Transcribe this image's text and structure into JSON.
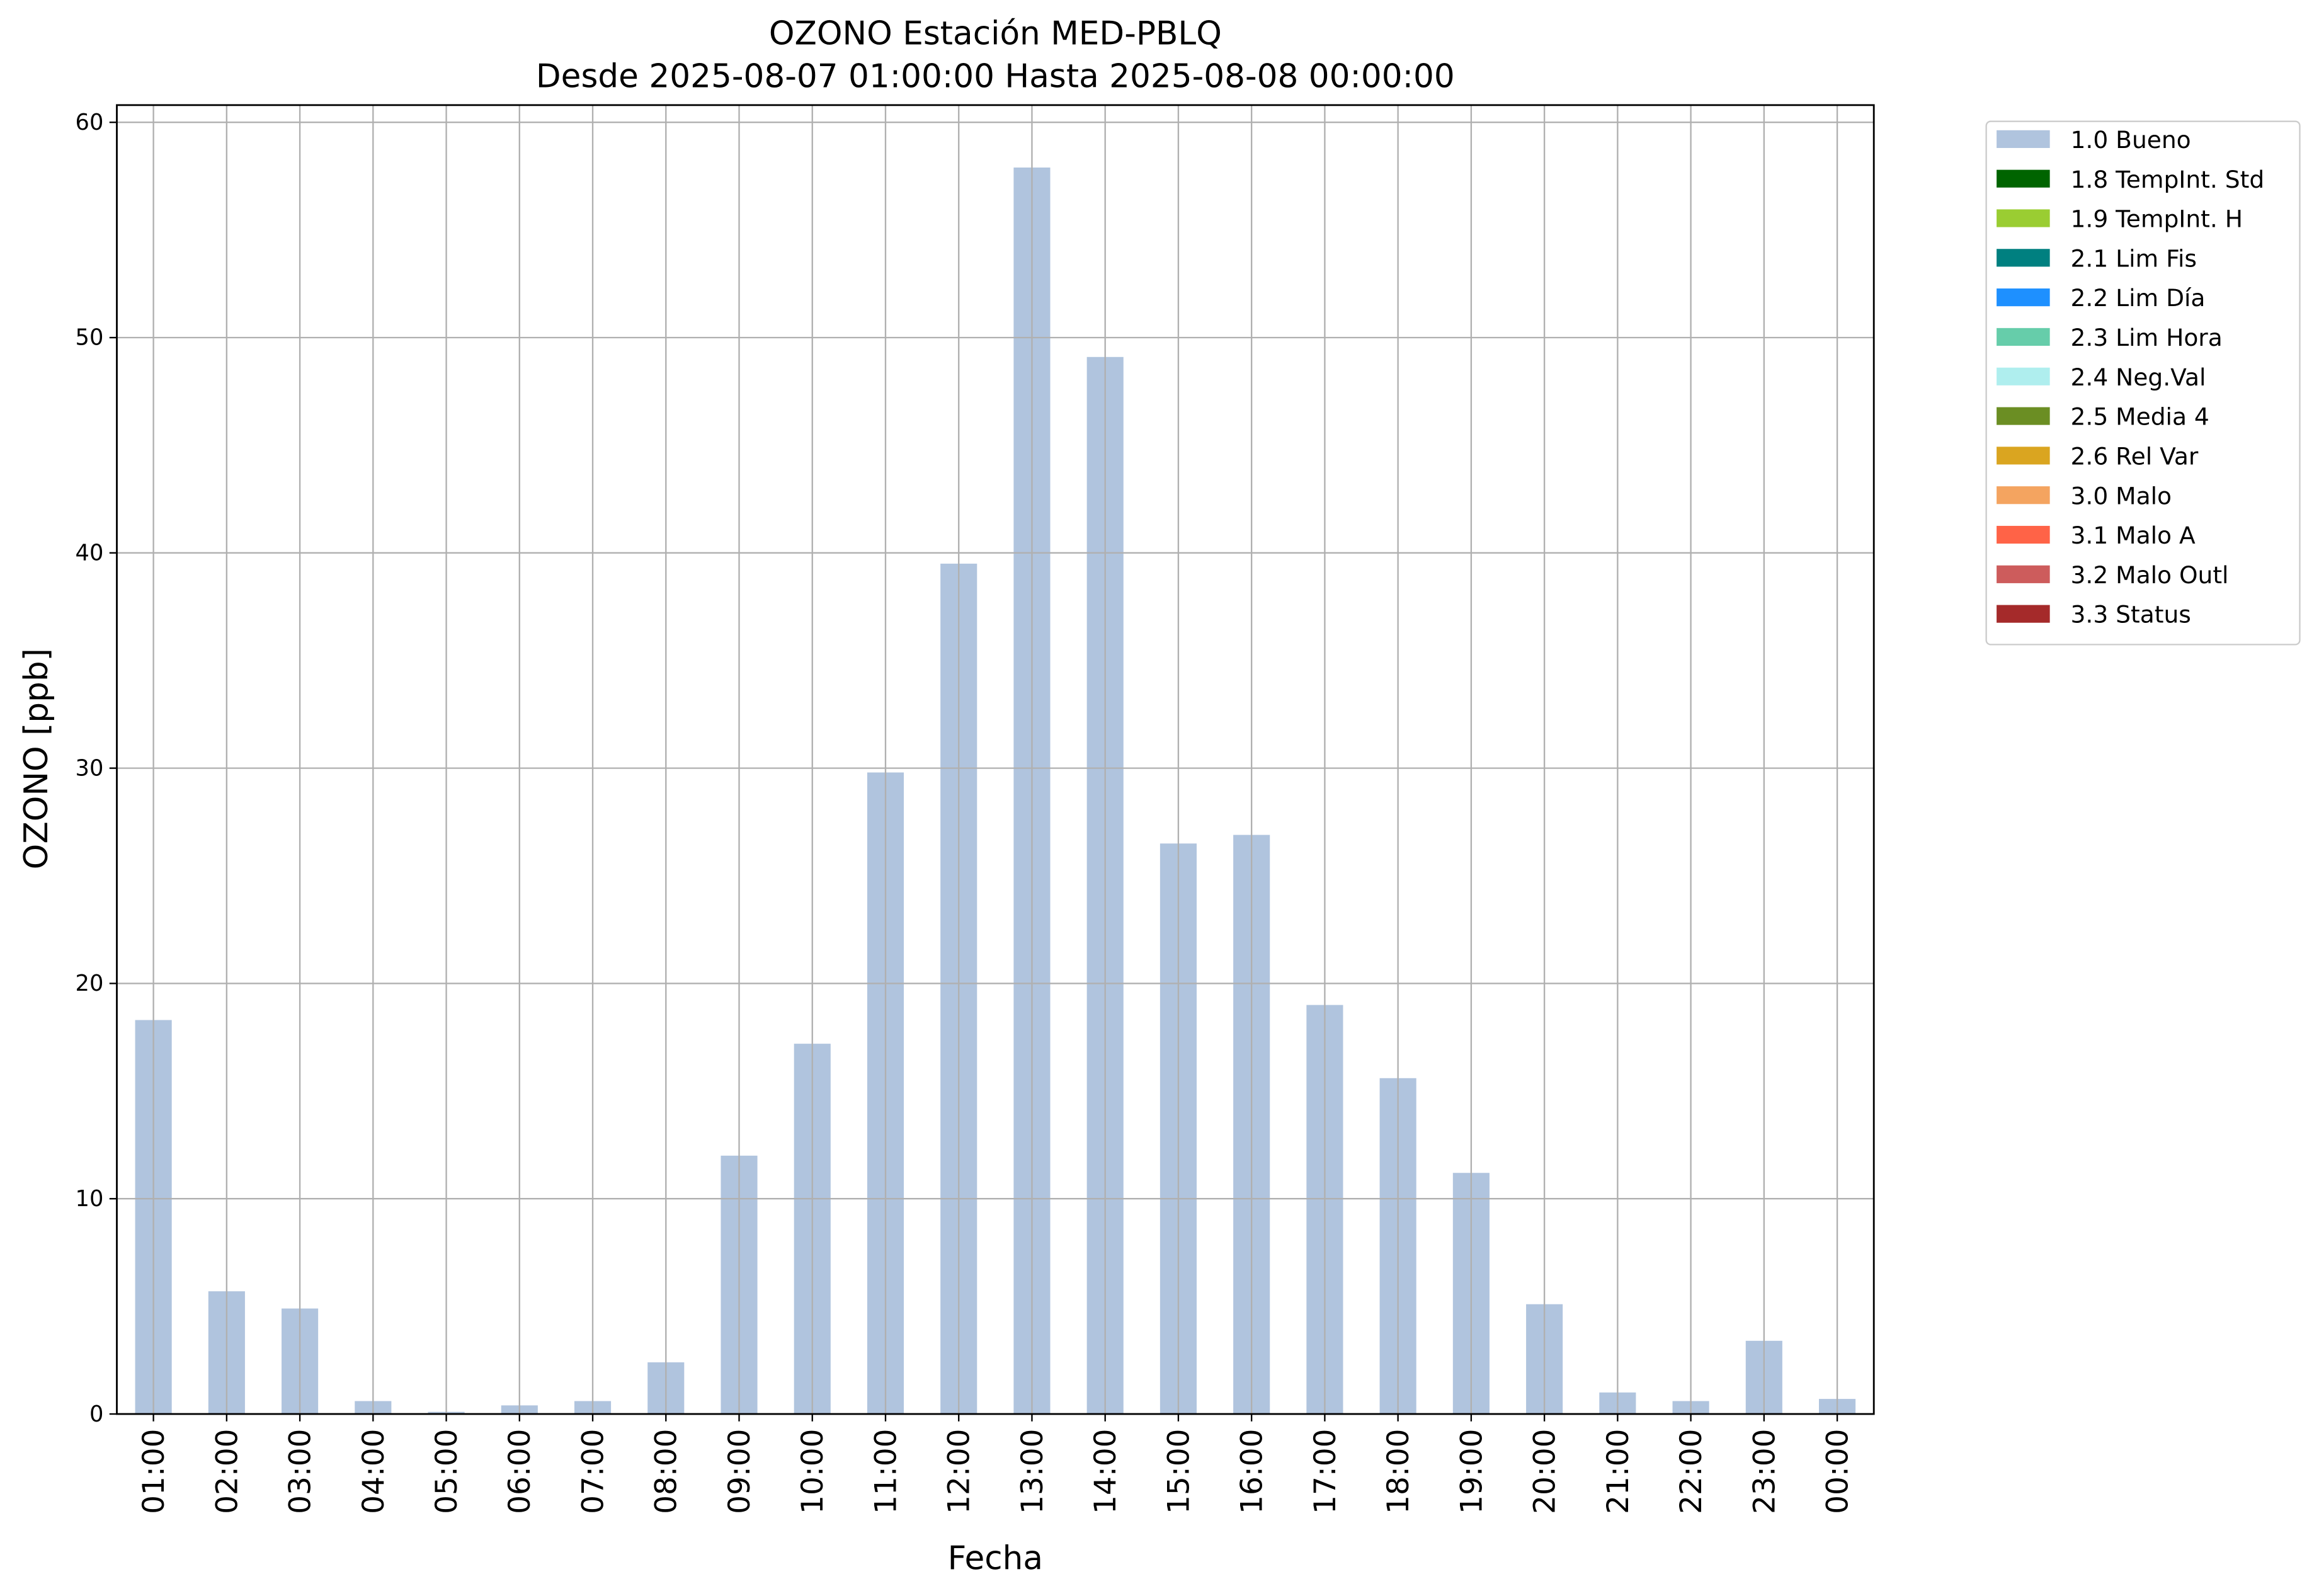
{
  "chart_data": {
    "type": "bar",
    "stacked": true,
    "title": "OZONO Estación MED-PBLQ",
    "subtitle": "Desde 2025-08-07 01:00:00 Hasta 2025-08-08 00:00:00",
    "x_label": "Fecha",
    "y_label": "OZONO [ppb]",
    "categories": [
      "01:00",
      "02:00",
      "03:00",
      "04:00",
      "05:00",
      "06:00",
      "07:00",
      "08:00",
      "09:00",
      "10:00",
      "11:00",
      "12:00",
      "13:00",
      "14:00",
      "15:00",
      "16:00",
      "17:00",
      "18:00",
      "19:00",
      "20:00",
      "21:00",
      "22:00",
      "23:00",
      "00:00"
    ],
    "series": [
      {
        "name": "1.0 Bueno",
        "color": "#b0c4de",
        "values": [
          18.3,
          5.7,
          4.9,
          0.6,
          0.1,
          0.4,
          0.6,
          2.4,
          12.0,
          17.2,
          29.8,
          39.5,
          57.9,
          49.1,
          26.5,
          26.9,
          19.0,
          15.6,
          11.2,
          5.1,
          1.0,
          0.6,
          3.4,
          0.7
        ]
      },
      {
        "name": "1.8 TempInt. Std",
        "color": "#006400",
        "values": [
          null,
          null,
          null,
          null,
          null,
          null,
          null,
          null,
          null,
          null,
          null,
          null,
          null,
          null,
          null,
          null,
          null,
          null,
          null,
          null,
          null,
          null,
          null,
          null
        ]
      },
      {
        "name": "1.9 TempInt. H",
        "color": "#9acd32",
        "values": [
          null,
          null,
          null,
          null,
          null,
          null,
          null,
          null,
          null,
          null,
          null,
          null,
          null,
          null,
          null,
          null,
          null,
          null,
          null,
          null,
          null,
          null,
          null,
          null
        ]
      },
      {
        "name": "2.1 Lim Fis",
        "color": "#008080",
        "values": [
          null,
          null,
          null,
          null,
          null,
          null,
          null,
          null,
          null,
          null,
          null,
          null,
          null,
          null,
          null,
          null,
          null,
          null,
          null,
          null,
          null,
          null,
          null,
          null
        ]
      },
      {
        "name": "2.2 Lim Día",
        "color": "#1e90ff",
        "values": [
          null,
          null,
          null,
          null,
          null,
          null,
          null,
          null,
          null,
          null,
          null,
          null,
          null,
          null,
          null,
          null,
          null,
          null,
          null,
          null,
          null,
          null,
          null,
          null
        ]
      },
      {
        "name": "2.3 Lim Hora",
        "color": "#66cdaa",
        "values": [
          null,
          null,
          null,
          null,
          null,
          null,
          null,
          null,
          null,
          null,
          null,
          null,
          null,
          null,
          null,
          null,
          null,
          null,
          null,
          null,
          null,
          null,
          null,
          null
        ]
      },
      {
        "name": "2.4 Neg.Val",
        "color": "#afeeee",
        "values": [
          null,
          null,
          null,
          null,
          null,
          null,
          null,
          null,
          null,
          null,
          null,
          null,
          null,
          null,
          null,
          null,
          null,
          null,
          null,
          null,
          null,
          null,
          null,
          null
        ]
      },
      {
        "name": "2.5 Media 4",
        "color": "#6b8e23",
        "values": [
          null,
          null,
          null,
          null,
          null,
          null,
          null,
          null,
          null,
          null,
          null,
          null,
          null,
          null,
          null,
          null,
          null,
          null,
          null,
          null,
          null,
          null,
          null,
          null
        ]
      },
      {
        "name": "2.6 Rel Var",
        "color": "#daa520",
        "values": [
          null,
          null,
          null,
          null,
          null,
          null,
          null,
          null,
          null,
          null,
          null,
          null,
          null,
          null,
          null,
          null,
          null,
          null,
          null,
          null,
          null,
          null,
          null,
          null
        ]
      },
      {
        "name": "3.0 Malo",
        "color": "#f4a460",
        "values": [
          null,
          null,
          null,
          null,
          null,
          null,
          null,
          null,
          null,
          null,
          null,
          null,
          null,
          null,
          null,
          null,
          null,
          null,
          null,
          null,
          null,
          null,
          null,
          null
        ]
      },
      {
        "name": "3.1 Malo A",
        "color": "#ff6347",
        "values": [
          null,
          null,
          null,
          null,
          null,
          null,
          null,
          null,
          null,
          null,
          null,
          null,
          null,
          null,
          null,
          null,
          null,
          null,
          null,
          null,
          null,
          null,
          null,
          null
        ]
      },
      {
        "name": "3.2 Malo Outl",
        "color": "#cd5c5c",
        "values": [
          null,
          null,
          null,
          null,
          null,
          null,
          null,
          null,
          null,
          null,
          null,
          null,
          null,
          null,
          null,
          null,
          null,
          null,
          null,
          null,
          null,
          null,
          null,
          null
        ]
      },
      {
        "name": "3.3 Status",
        "color": "#a52a2a",
        "values": [
          null,
          null,
          null,
          null,
          null,
          null,
          null,
          null,
          null,
          null,
          null,
          null,
          null,
          null,
          null,
          null,
          null,
          null,
          null,
          null,
          null,
          null,
          null,
          null
        ]
      }
    ],
    "ylim": [
      0,
      60.8
    ],
    "yticks": [
      0,
      10,
      20,
      30,
      40,
      50,
      60
    ],
    "grid": true,
    "legend": "outside right"
  }
}
